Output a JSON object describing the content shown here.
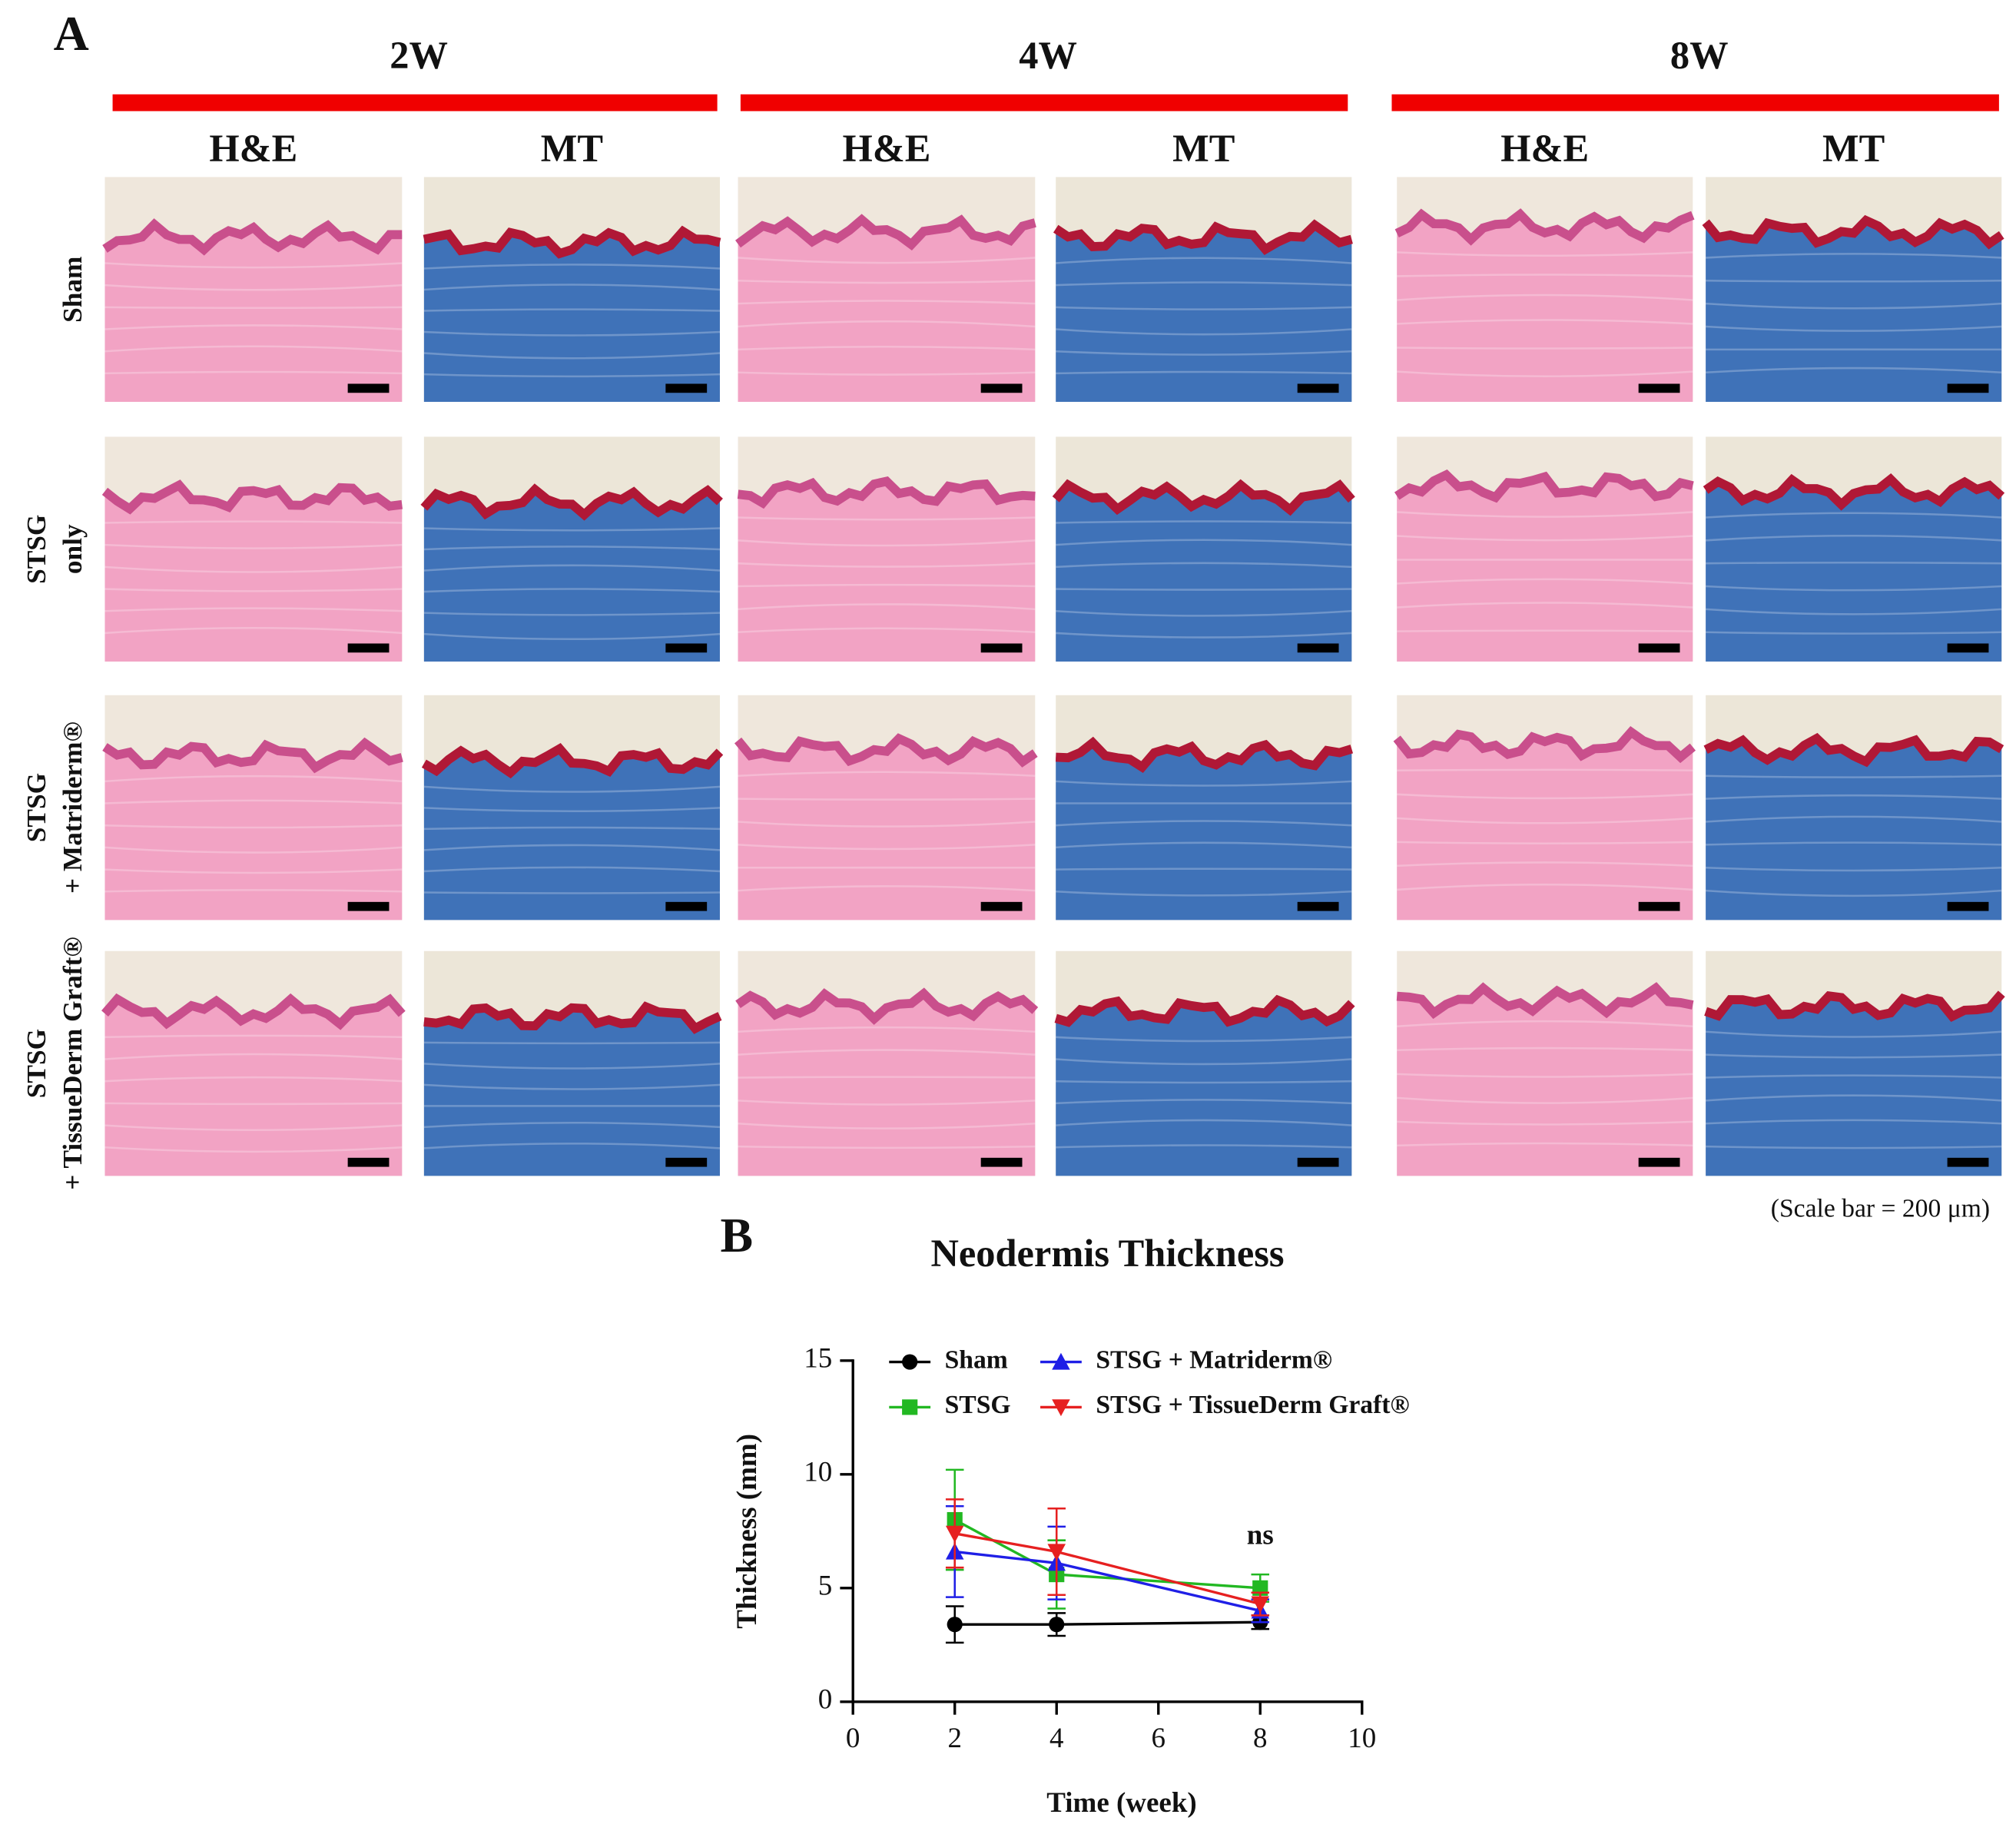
{
  "panel_a": {
    "label": "A",
    "timepoints": [
      {
        "label": "2W",
        "stains": [
          "H&E",
          "MT"
        ]
      },
      {
        "label": "4W",
        "stains": [
          "H&E",
          "MT"
        ]
      },
      {
        "label": "8W",
        "stains": [
          "H&E",
          "MT"
        ]
      }
    ],
    "rows": [
      [
        "Sham"
      ],
      [
        "STSG",
        "only"
      ],
      [
        "STSG",
        "+ Matriderm®"
      ],
      [
        "STSG",
        "+ TissueDerm Graft®"
      ]
    ],
    "scale_note": "(Scale bar = 200 μm)"
  },
  "panel_b": {
    "label": "B"
  },
  "chart_data": {
    "type": "line",
    "title": "Neodermis Thickness",
    "x_label": "Time (week)",
    "y_label": "Thickness (mm)",
    "x": [
      2,
      4,
      8
    ],
    "series": [
      {
        "name": "Sham",
        "color": "#000000",
        "marker": "circle",
        "values": [
          3.4,
          3.4,
          3.5
        ],
        "errors": [
          0.8,
          0.5,
          0.3
        ]
      },
      {
        "name": "STSG",
        "color": "#22b822",
        "marker": "square",
        "values": [
          8.0,
          5.6,
          5.0
        ],
        "errors": [
          2.2,
          1.5,
          0.6
        ]
      },
      {
        "name": "STSG + Matriderm®",
        "color": "#1f1fe6",
        "marker": "triangle-up",
        "values": [
          6.6,
          6.1,
          4.0
        ],
        "errors": [
          2.0,
          1.6,
          0.5
        ]
      },
      {
        "name": "STSG + TissueDerm Graft®",
        "color": "#e62020",
        "marker": "triangle-down",
        "values": [
          7.4,
          6.6,
          4.3
        ],
        "errors": [
          1.5,
          1.9,
          0.5
        ]
      }
    ],
    "annotation": "ns",
    "xlim": [
      0,
      10
    ],
    "xticks": [
      0,
      2,
      4,
      6,
      8,
      10
    ],
    "ylim": [
      0,
      15
    ],
    "yticks": [
      0,
      5,
      10,
      15
    ]
  }
}
